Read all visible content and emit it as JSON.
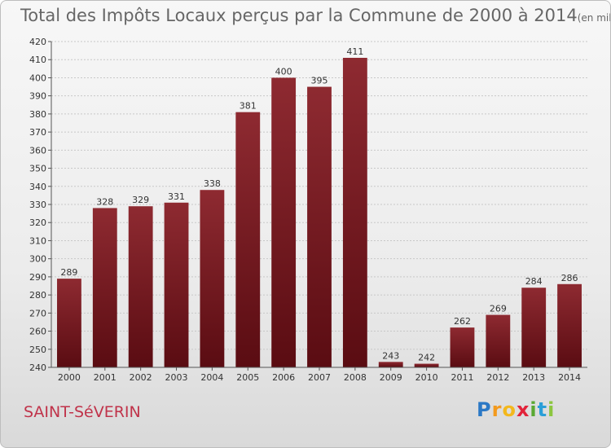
{
  "header": {
    "title": "Total des Impôts Locaux perçus par la Commune de 2000 à 2014",
    "unit": "(en milliers d'€)"
  },
  "footer": {
    "commune": "SAINT-SéVERIN",
    "logo_letters": [
      "P",
      "r",
      "o",
      "x",
      "i",
      "t",
      "i"
    ],
    "logo_colors": [
      "#2b78c5",
      "#f39a1d",
      "#f3b81d",
      "#e2233a",
      "#5aa832",
      "#2b9fd8",
      "#8cc63f"
    ]
  },
  "chart_data": {
    "type": "bar",
    "title": "Total des Impôts Locaux perçus par la Commune de 2000 à 2014",
    "categories": [
      "2000",
      "2001",
      "2002",
      "2003",
      "2004",
      "2005",
      "2006",
      "2007",
      "2008",
      "2009",
      "2010",
      "2011",
      "2012",
      "2013",
      "2014"
    ],
    "values": [
      289,
      328,
      329,
      331,
      338,
      381,
      400,
      395,
      411,
      243,
      242,
      262,
      269,
      284,
      286
    ],
    "ylim": [
      240,
      420
    ],
    "yticks": [
      240,
      250,
      260,
      270,
      280,
      290,
      300,
      310,
      320,
      330,
      340,
      350,
      360,
      370,
      380,
      390,
      400,
      410,
      420
    ],
    "grid": true,
    "bar_color": "#7a1f24"
  }
}
